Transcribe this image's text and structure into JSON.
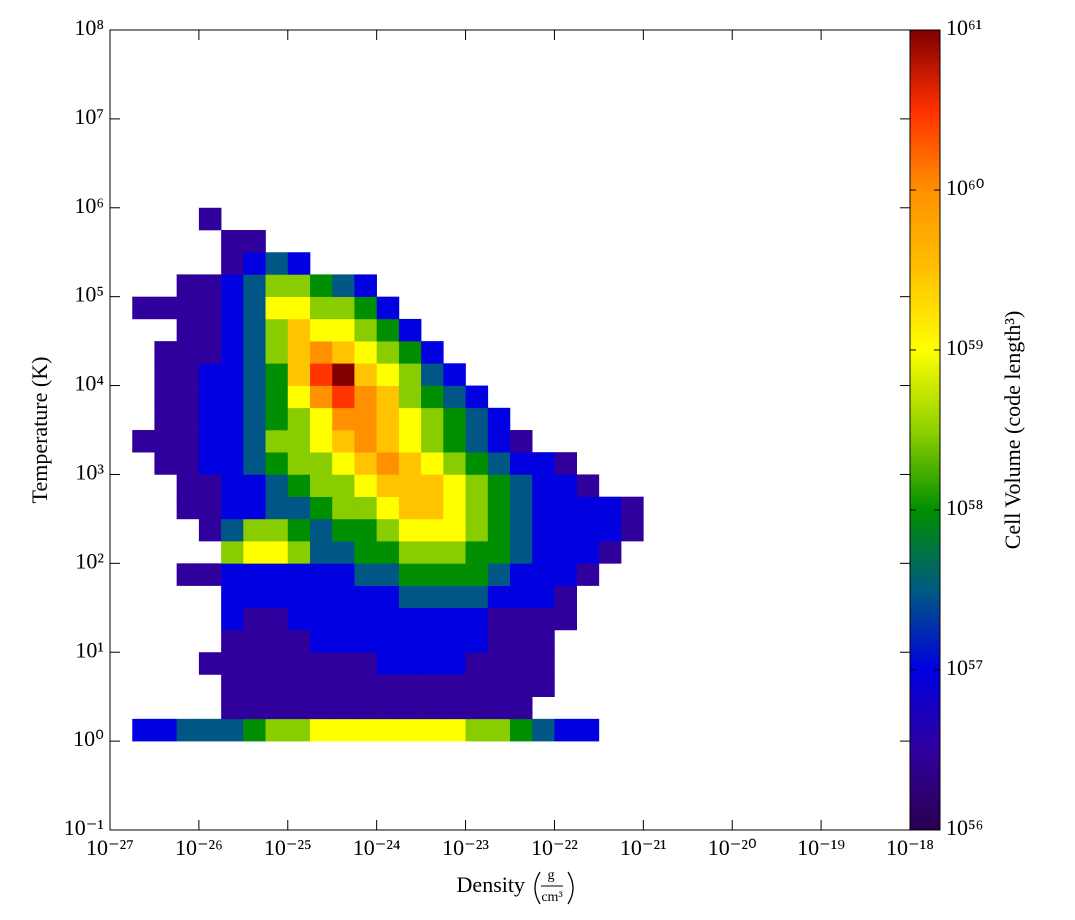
{
  "chart_data": {
    "type": "heatmap",
    "xlabel": "Density",
    "xunit_numerator": "g",
    "xunit_denominator": "cm³",
    "ylabel": "Temperature (K)",
    "colorbar_label": "Cell Volume (code length³)",
    "xscale": "log",
    "yscale": "log",
    "colorscale": "log",
    "xlim": [
      1e-27,
      1e-18
    ],
    "ylim": [
      0.1,
      100000000
    ],
    "clim": [
      1e+56,
      1e+61
    ],
    "xticks": [
      {
        "value": 1e-27,
        "label": "10⁻²⁷"
      },
      {
        "value": 1e-26,
        "label": "10⁻²⁶"
      },
      {
        "value": 1e-25,
        "label": "10⁻²⁵"
      },
      {
        "value": 1e-24,
        "label": "10⁻²⁴"
      },
      {
        "value": 1e-23,
        "label": "10⁻²³"
      },
      {
        "value": 1e-22,
        "label": "10⁻²²"
      },
      {
        "value": 1e-21,
        "label": "10⁻²¹"
      },
      {
        "value": 1e-20,
        "label": "10⁻²⁰"
      },
      {
        "value": 1e-19,
        "label": "10⁻¹⁹"
      },
      {
        "value": 1e-18,
        "label": "10⁻¹⁸"
      }
    ],
    "yticks": [
      {
        "value": 0.1,
        "label": "10⁻¹"
      },
      {
        "value": 1,
        "label": "10⁰"
      },
      {
        "value": 10,
        "label": "10¹"
      },
      {
        "value": 100,
        "label": "10²"
      },
      {
        "value": 1000,
        "label": "10³"
      },
      {
        "value": 10000,
        "label": "10⁴"
      },
      {
        "value": 100000,
        "label": "10⁵"
      },
      {
        "value": 1000000,
        "label": "10⁶"
      },
      {
        "value": 10000000,
        "label": "10⁷"
      },
      {
        "value": 100000000,
        "label": "10⁸"
      }
    ],
    "cticks": [
      {
        "value": 1e+56,
        "label": "10⁵⁶"
      },
      {
        "value": 1e+57,
        "label": "10⁵⁷"
      },
      {
        "value": 1e+58,
        "label": "10⁵⁸"
      },
      {
        "value": 1e+59,
        "label": "10⁵⁹"
      },
      {
        "value": 1e+60,
        "label": "10⁶⁰"
      },
      {
        "value": 1e+61,
        "label": "10⁶¹"
      }
    ],
    "colors": [
      "#2a0050",
      "#3000a0",
      "#0000e0",
      "#005a80",
      "#008f00",
      "#90d000",
      "#ffff00",
      "#ffc000",
      "#ff9000",
      "#ff3000",
      "#800000"
    ],
    "xbins": [
      1e-27,
      1.78e-27,
      3.16e-27,
      5.62e-27,
      1e-26,
      1.78e-26,
      3.16e-26,
      5.62e-26,
      1e-25,
      1.78e-25,
      3.16e-25,
      5.62e-25,
      1e-24,
      1.78e-24,
      3.16e-24,
      5.62e-24,
      1e-23,
      1.78e-23,
      3.16e-23,
      5.62e-23,
      1e-22,
      1.78e-22,
      3.16e-22,
      5.62e-22,
      1e-21
    ],
    "ybins": [
      1,
      1.78,
      3.16,
      5.62,
      10,
      17.8,
      31.6,
      56.2,
      100,
      178,
      316,
      562,
      1000,
      1780,
      3160,
      5620,
      10000,
      17800,
      31600,
      56200,
      100000,
      178000,
      316000,
      562000,
      1000000
    ],
    "values": [
      [
        null,
        1e+57,
        1e+57,
        3e+57,
        3e+57,
        3e+57,
        1e+58,
        3e+58,
        3e+58,
        1e+59,
        1e+59,
        1e+59,
        1e+59,
        1e+59,
        1e+59,
        1e+59,
        3e+58,
        3e+58,
        1e+58,
        3e+57,
        1e+57,
        1e+57,
        null,
        null
      ],
      [
        null,
        null,
        null,
        null,
        null,
        3e+56,
        3e+56,
        3e+56,
        3e+56,
        3e+56,
        3e+56,
        3e+56,
        3e+56,
        3e+56,
        3e+56,
        3e+56,
        3e+56,
        3e+56,
        3e+56,
        null,
        null,
        null,
        null,
        null
      ],
      [
        null,
        null,
        null,
        null,
        null,
        3e+56,
        3e+56,
        3e+56,
        3e+56,
        3e+56,
        3e+56,
        3e+56,
        3e+56,
        3e+56,
        3e+56,
        3e+56,
        3e+56,
        3e+56,
        3e+56,
        3e+56,
        null,
        null,
        null,
        null
      ],
      [
        null,
        null,
        null,
        null,
        3e+56,
        3e+56,
        3e+56,
        3e+56,
        3e+56,
        3e+56,
        3e+56,
        3e+56,
        1e+57,
        1e+57,
        1e+57,
        1e+57,
        3e+56,
        3e+56,
        3e+56,
        3e+56,
        null,
        null,
        null,
        null
      ],
      [
        null,
        null,
        null,
        null,
        null,
        3e+56,
        3e+56,
        3e+56,
        3e+56,
        1e+57,
        1e+57,
        1e+57,
        1e+57,
        1e+57,
        1e+57,
        1e+57,
        1e+57,
        3e+56,
        3e+56,
        3e+56,
        null,
        null,
        null,
        null
      ],
      [
        null,
        null,
        null,
        null,
        null,
        1e+57,
        3e+56,
        3e+56,
        1e+57,
        1e+57,
        1e+57,
        1e+57,
        1e+57,
        1e+57,
        1e+57,
        1e+57,
        1e+57,
        3e+56,
        3e+56,
        3e+56,
        3e+56,
        null,
        null,
        null
      ],
      [
        null,
        null,
        null,
        null,
        null,
        1e+57,
        1e+57,
        1e+57,
        1e+57,
        1e+57,
        1e+57,
        1e+57,
        1e+57,
        3e+57,
        3e+57,
        3e+57,
        3e+57,
        1e+57,
        1e+57,
        1e+57,
        3e+56,
        null,
        null,
        null
      ],
      [
        null,
        null,
        null,
        3e+56,
        3e+56,
        1e+57,
        1e+57,
        1e+57,
        1e+57,
        1e+57,
        1e+57,
        3e+57,
        3e+57,
        1e+58,
        1e+58,
        1e+58,
        1e+58,
        3e+57,
        1e+57,
        1e+57,
        1e+57,
        3e+56,
        null,
        null
      ],
      [
        null,
        null,
        null,
        null,
        null,
        3e+58,
        1e+59,
        1e+59,
        3e+58,
        3e+57,
        3e+57,
        1e+58,
        1e+58,
        3e+58,
        3e+58,
        3e+58,
        1e+58,
        1e+58,
        3e+57,
        1e+57,
        1e+57,
        1e+57,
        3e+56,
        null
      ],
      [
        null,
        null,
        null,
        null,
        3e+56,
        3e+57,
        3e+58,
        3e+58,
        1e+58,
        3e+57,
        1e+58,
        1e+58,
        3e+58,
        1e+59,
        1e+59,
        1e+59,
        3e+58,
        1e+58,
        3e+57,
        1e+57,
        1e+57,
        1e+57,
        1e+57,
        3e+56
      ],
      [
        null,
        null,
        null,
        3e+56,
        3e+56,
        1e+57,
        1e+57,
        3e+57,
        3e+57,
        1e+58,
        3e+58,
        3e+58,
        1e+59,
        3e+59,
        3e+59,
        1e+59,
        3e+58,
        1e+58,
        3e+57,
        1e+57,
        1e+57,
        1e+57,
        1e+57,
        3e+56
      ],
      [
        null,
        null,
        null,
        3e+56,
        3e+56,
        1e+57,
        1e+57,
        3e+57,
        1e+58,
        3e+58,
        3e+58,
        1e+59,
        3e+59,
        3e+59,
        3e+59,
        1e+59,
        3e+58,
        1e+58,
        3e+57,
        1e+57,
        1e+57,
        3e+56,
        null,
        null
      ],
      [
        null,
        null,
        3e+56,
        3e+56,
        1e+57,
        1e+57,
        3e+57,
        1e+58,
        3e+58,
        3e+58,
        1e+59,
        3e+59,
        1e+60,
        3e+59,
        1e+59,
        3e+58,
        1e+58,
        3e+57,
        1e+57,
        1e+57,
        3e+56,
        null,
        null,
        null
      ],
      [
        null,
        3e+56,
        3e+56,
        3e+56,
        1e+57,
        1e+57,
        3e+57,
        3e+58,
        3e+58,
        1e+59,
        3e+59,
        1e+60,
        3e+59,
        1e+59,
        3e+58,
        1e+58,
        3e+57,
        1e+57,
        3e+56,
        null,
        null,
        null,
        null,
        null
      ],
      [
        null,
        null,
        3e+56,
        3e+56,
        1e+57,
        1e+57,
        3e+57,
        1e+58,
        3e+58,
        1e+59,
        1e+60,
        1e+60,
        3e+59,
        1e+59,
        3e+58,
        1e+58,
        3e+57,
        1e+57,
        null,
        null,
        null,
        null,
        null,
        null
      ],
      [
        null,
        null,
        3e+56,
        3e+56,
        1e+57,
        1e+57,
        3e+57,
        1e+58,
        1e+59,
        1e+60,
        3e+60,
        1e+60,
        3e+59,
        3e+58,
        1e+58,
        3e+57,
        1e+57,
        null,
        null,
        null,
        null,
        null,
        null,
        null
      ],
      [
        null,
        null,
        3e+56,
        3e+56,
        1e+57,
        1e+57,
        3e+57,
        1e+58,
        3e+59,
        3e+60,
        1e+61,
        3e+59,
        1e+59,
        3e+58,
        3e+57,
        1e+57,
        null,
        null,
        null,
        null,
        null,
        null,
        null,
        null
      ],
      [
        null,
        null,
        3e+56,
        3e+56,
        3e+56,
        1e+57,
        3e+57,
        3e+58,
        3e+59,
        1e+60,
        3e+59,
        1e+59,
        3e+58,
        1e+58,
        1e+57,
        null,
        null,
        null,
        null,
        null,
        null,
        null,
        null,
        null
      ],
      [
        null,
        null,
        null,
        3e+56,
        3e+56,
        1e+57,
        3e+57,
        3e+58,
        3e+59,
        1e+59,
        1e+59,
        3e+58,
        1e+58,
        1e+57,
        null,
        null,
        null,
        null,
        null,
        null,
        null,
        null,
        null,
        null
      ],
      [
        null,
        3e+56,
        3e+56,
        3e+56,
        3e+56,
        1e+57,
        3e+57,
        1e+59,
        1e+59,
        3e+58,
        3e+58,
        1e+58,
        1e+57,
        null,
        null,
        null,
        null,
        null,
        null,
        null,
        null,
        null,
        null,
        null
      ],
      [
        null,
        null,
        null,
        3e+56,
        3e+56,
        1e+57,
        3e+57,
        3e+58,
        3e+58,
        1e+58,
        3e+57,
        1e+57,
        null,
        null,
        null,
        null,
        null,
        null,
        null,
        null,
        null,
        null,
        null,
        null
      ],
      [
        null,
        null,
        null,
        null,
        null,
        3e+56,
        1e+57,
        3e+57,
        1e+57,
        null,
        null,
        null,
        null,
        null,
        null,
        null,
        null,
        null,
        null,
        null,
        null,
        null,
        null,
        null
      ],
      [
        null,
        null,
        null,
        null,
        null,
        3e+56,
        3e+56,
        null,
        null,
        null,
        null,
        null,
        null,
        null,
        null,
        null,
        null,
        null,
        null,
        null,
        null,
        null,
        null,
        null
      ],
      [
        null,
        null,
        null,
        null,
        3e+56,
        null,
        null,
        null,
        null,
        null,
        null,
        null,
        null,
        null,
        null,
        null,
        null,
        null,
        null,
        null,
        null,
        null,
        null,
        null
      ]
    ]
  }
}
